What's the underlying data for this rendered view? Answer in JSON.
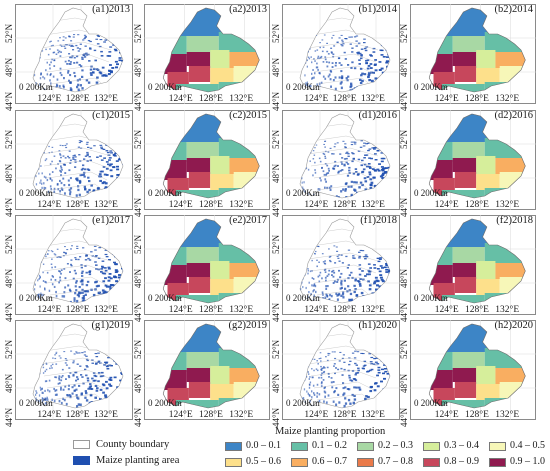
{
  "panels": [
    {
      "label": "(a1)2013",
      "kind": "area"
    },
    {
      "label": "(a2)2013",
      "kind": "prop"
    },
    {
      "label": "(b1)2014",
      "kind": "area"
    },
    {
      "label": "(b2)2014",
      "kind": "prop"
    },
    {
      "label": "(c1)2015",
      "kind": "area"
    },
    {
      "label": "(c2)2015",
      "kind": "prop"
    },
    {
      "label": "(d1)2016",
      "kind": "area"
    },
    {
      "label": "(d2)2016",
      "kind": "prop"
    },
    {
      "label": "(e1)2017",
      "kind": "area"
    },
    {
      "label": "(e2)2017",
      "kind": "prop"
    },
    {
      "label": "(f1)2018",
      "kind": "area"
    },
    {
      "label": "(f2)2018",
      "kind": "prop"
    },
    {
      "label": "(g1)2019",
      "kind": "area"
    },
    {
      "label": "(g2)2019",
      "kind": "prop"
    },
    {
      "label": "(h1)2020",
      "kind": "area"
    },
    {
      "label": "(h2)2020",
      "kind": "prop"
    }
  ],
  "axes": {
    "lat_labels": [
      "52°N",
      "48°N",
      "44°N"
    ],
    "lon_labels": [
      "124°E",
      "128°E",
      "132°E"
    ],
    "scale_label": "0  200Km"
  },
  "legend": {
    "title": "Maize planting proportion",
    "county_boundary": "County boundary",
    "maize_area": "Maize planting area",
    "classes": [
      {
        "label": "0.0 – 0.1",
        "color": "#3d85c6"
      },
      {
        "label": "0.1 – 0.2",
        "color": "#66bfa6"
      },
      {
        "label": "0.2 – 0.3",
        "color": "#a8d8a4"
      },
      {
        "label": "0.3 – 0.4",
        "color": "#d6ee9b"
      },
      {
        "label": "0.4 – 0.5",
        "color": "#f7f7b8"
      },
      {
        "label": "0.5 – 0.6",
        "color": "#fde08b"
      },
      {
        "label": "0.6 – 0.7",
        "color": "#f9ae61"
      },
      {
        "label": "0.7 – 0.8",
        "color": "#ea7a4a"
      },
      {
        "label": "0.8 – 0.9",
        "color": "#c7475c"
      },
      {
        "label": "0.9 – 1.0",
        "color": "#8f1a4f"
      }
    ],
    "maize_color": "#1f4fb0",
    "boundary_color": "#9a9a9a"
  }
}
